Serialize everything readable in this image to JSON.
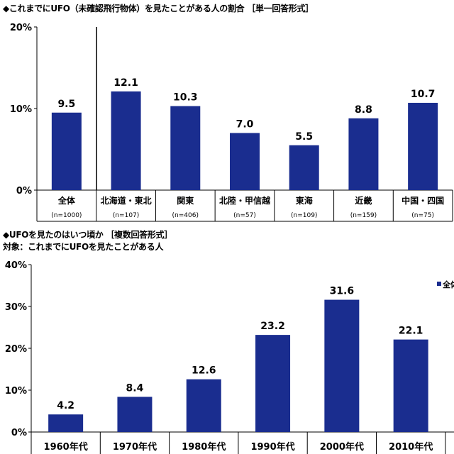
{
  "chart1": {
    "title": "◆これまでにUFO（未確認飛行物体）を見たことがある人の割合 ［単一回答形式］",
    "chart_data": {
      "type": "bar",
      "categories": [
        "全体",
        "北海道・東北",
        "関東",
        "北陸・甲信越",
        "東海",
        "近畿",
        "中国・四国"
      ],
      "n_labels": [
        "(n=1000)",
        "(n=107)",
        "(n=406)",
        "(n=57)",
        "(n=109)",
        "(n=159)",
        "(n=75)"
      ],
      "values": [
        9.5,
        12.1,
        10.3,
        7.0,
        5.5,
        8.8,
        10.7
      ],
      "value_labels": [
        "9.5",
        "12.1",
        "10.3",
        "7.0",
        "5.5",
        "8.8",
        "10.7"
      ],
      "yticks": [
        "0%",
        "10%",
        "20%"
      ],
      "ylim": [
        0,
        20
      ],
      "bar_color": "#1a2d8f"
    }
  },
  "chart2": {
    "title": "◆UFOを見たのはいつ頃か ［複数回答形式］",
    "subtitle": "対象：これまでにUFOを見たことがある人",
    "chart_data": {
      "type": "bar",
      "categories": [
        "1960年代",
        "1970年代",
        "1980年代",
        "1990年代",
        "2000年代",
        "2010年代"
      ],
      "values": [
        4.2,
        8.4,
        12.6,
        23.2,
        31.6,
        22.1
      ],
      "value_labels": [
        "4.2",
        "8.4",
        "12.6",
        "23.2",
        "31.6",
        "22.1"
      ],
      "yticks": [
        "0%",
        "10%",
        "20%",
        "30%",
        "40%"
      ],
      "ylim": [
        0,
        40
      ],
      "legend": "全体",
      "legend_position": "top-right",
      "bar_color": "#1a2d8f"
    }
  }
}
